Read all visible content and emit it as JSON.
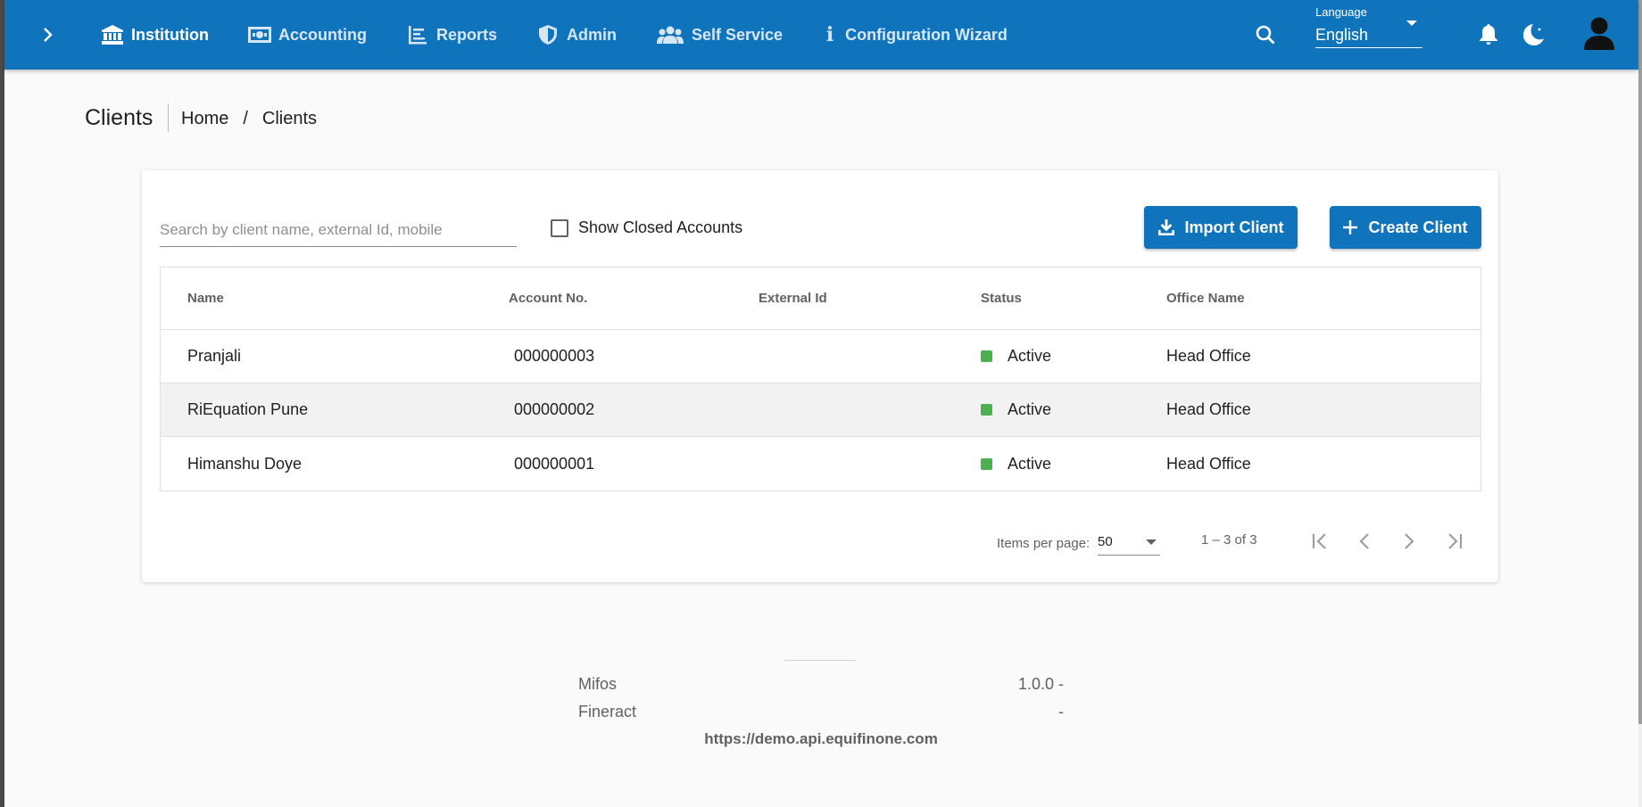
{
  "colors": {
    "primary": "#1074bd",
    "status_active": "#4caf50"
  },
  "topbar": {
    "nav": [
      {
        "label": "Institution",
        "icon": "bank-icon",
        "active": true
      },
      {
        "label": "Accounting",
        "icon": "money-icon",
        "active": false
      },
      {
        "label": "Reports",
        "icon": "chart-icon",
        "active": false
      },
      {
        "label": "Admin",
        "icon": "shield-icon",
        "active": false
      },
      {
        "label": "Self Service",
        "icon": "users-icon",
        "active": false
      },
      {
        "label": "Configuration Wizard",
        "icon": "info-icon",
        "active": false
      }
    ],
    "language_label": "Language",
    "language_value": "English"
  },
  "page": {
    "title": "Clients",
    "breadcrumb": [
      "Home",
      "Clients"
    ],
    "breadcrumb_separator": "/"
  },
  "toolbar": {
    "search_placeholder": "Search by client name, external Id, mobile",
    "search_value": "",
    "show_closed_label": "Show Closed Accounts",
    "show_closed_checked": false,
    "import_label": "Import Client",
    "create_label": "Create Client"
  },
  "table": {
    "columns": [
      "Name",
      "Account No.",
      "External Id",
      "Status",
      "Office Name"
    ],
    "rows": [
      {
        "name": "Pranjali",
        "account": "000000003",
        "external_id": "",
        "status": "Active",
        "office": "Head Office"
      },
      {
        "name": "RiEquation Pune",
        "account": "000000002",
        "external_id": "",
        "status": "Active",
        "office": "Head Office"
      },
      {
        "name": "Himanshu Doye",
        "account": "000000001",
        "external_id": "",
        "status": "Active",
        "office": "Head Office"
      }
    ]
  },
  "paginator": {
    "items_per_page_label": "Items per page:",
    "items_per_page": "50",
    "range": "1 – 3 of 3"
  },
  "footer": {
    "mifos_label": "Mifos",
    "mifos_version": "1.0.0 -",
    "fineract_label": "Fineract",
    "fineract_version": "-",
    "server_url": "https://demo.api.equifinone.com"
  }
}
